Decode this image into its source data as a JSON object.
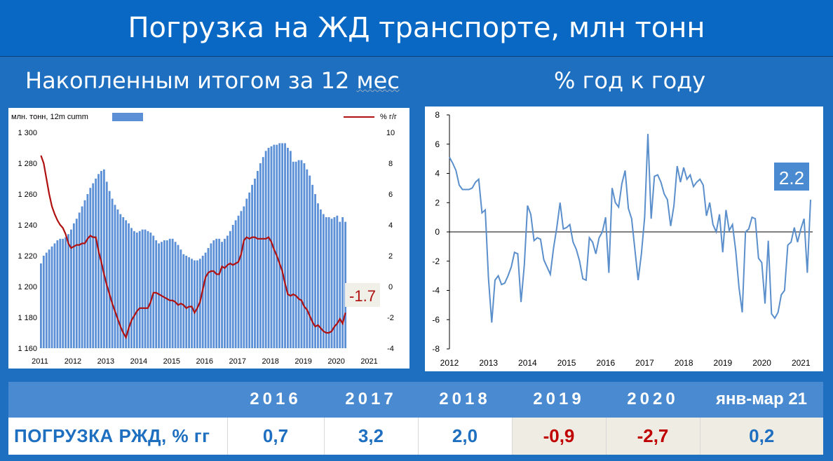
{
  "title": "Погрузка на ЖД транспорте, млн тонн",
  "subtitle_left_a": "Накопленным итогом за 12 ",
  "subtitle_left_b": "мес",
  "subtitle_right": "% год к году",
  "colors": {
    "bar": "#5b8fd6",
    "line_red": "#b01010",
    "line_blue": "#5b8fcc",
    "table_header": "#4a8ad0",
    "negative": "#c00000",
    "positive": "#1f6fc0"
  },
  "chart_data": [
    {
      "type": "bar",
      "legend_bar_label": "млн. тонн, 12m cumm",
      "legend_line_label": "% г/г",
      "x_ticks": [
        "2011",
        "2012",
        "2013",
        "2014",
        "2015",
        "2016",
        "2017",
        "2018",
        "2019",
        "2020",
        "2021"
      ],
      "y_left_ticks": [
        "1 160",
        "1 180",
        "1 200",
        "1 220",
        "1 240",
        "1 260",
        "1 280",
        "1 300"
      ],
      "y_right_ticks": [
        "-4",
        "-2",
        "0",
        "2",
        "4",
        "6",
        "8",
        "10"
      ],
      "ylim_left": [
        1160,
        1300
      ],
      "ylim_right": [
        -4,
        10
      ],
      "xlim": [
        2011.0,
        2021.35
      ],
      "annotation": "-1.7",
      "series": [
        {
          "kind": "bar",
          "axis": "left",
          "x_start": 2011.0,
          "step": 0.0833,
          "values": [
            1215,
            1220,
            1222,
            1224,
            1226,
            1228,
            1230,
            1231,
            1231,
            1232,
            1234,
            1237,
            1241,
            1244,
            1248,
            1252,
            1256,
            1260,
            1264,
            1267,
            1270,
            1273,
            1275,
            1276,
            1268,
            1262,
            1257,
            1253,
            1250,
            1247,
            1245,
            1243,
            1241,
            1238,
            1236,
            1235,
            1236,
            1237,
            1237,
            1236,
            1235,
            1233,
            1230,
            1228,
            1229,
            1230,
            1230,
            1231,
            1231,
            1229,
            1227,
            1224,
            1221,
            1220,
            1219,
            1218,
            1217,
            1217,
            1218,
            1220,
            1222,
            1225,
            1228,
            1230,
            1231,
            1231,
            1229,
            1231,
            1233,
            1236,
            1240,
            1243,
            1246,
            1249,
            1252,
            1257,
            1261,
            1266,
            1270,
            1275,
            1280,
            1284,
            1288,
            1290,
            1291,
            1292,
            1292,
            1293,
            1293,
            1293,
            1290,
            1288,
            1281,
            1281,
            1282,
            1282,
            1280,
            1276,
            1272,
            1266,
            1260,
            1254,
            1250,
            1247,
            1245,
            1245,
            1244,
            1245,
            1246,
            1242,
            1245,
            1242
          ]
        },
        {
          "kind": "line",
          "axis": "right",
          "x_start": 2011.0,
          "step": 0.0833,
          "values": [
            8.5,
            8.0,
            7.0,
            6.0,
            5.2,
            4.7,
            4.3,
            4.0,
            3.8,
            3.4,
            2.8,
            2.5,
            2.6,
            2.7,
            2.7,
            2.8,
            2.8,
            3.1,
            3.3,
            3.2,
            3.2,
            2.3,
            1.6,
            0.8,
            0.1,
            -0.5,
            -1.1,
            -1.6,
            -2.1,
            -2.6,
            -3.0,
            -3.3,
            -2.7,
            -2.2,
            -1.9,
            -1.6,
            -1.4,
            -1.4,
            -1.4,
            -1.4,
            -1.0,
            -0.4,
            -0.4,
            -0.5,
            -0.6,
            -0.7,
            -0.8,
            -0.9,
            -0.9,
            -1.0,
            -1.2,
            -1.1,
            -1.2,
            -1.4,
            -1.3,
            -1.3,
            -1.7,
            -1.4,
            -1.0,
            -0.2,
            0.6,
            0.9,
            1.0,
            1.0,
            0.8,
            0.8,
            1.3,
            1.2,
            1.4,
            1.5,
            1.4,
            1.5,
            1.6,
            2.1,
            3.0,
            3.2,
            3.1,
            3.2,
            3.2,
            3.1,
            3.1,
            3.1,
            3.1,
            3.2,
            2.9,
            2.4,
            2.0,
            1.5,
            1.0,
            0.2,
            -0.5,
            -0.6,
            -0.5,
            -0.6,
            -0.8,
            -0.9,
            -1.3,
            -1.5,
            -1.9,
            -2.3,
            -2.6,
            -2.5,
            -2.7,
            -2.9,
            -3.0,
            -3.0,
            -2.9,
            -2.6,
            -2.4,
            -2.1,
            -2.4,
            -1.7
          ]
        }
      ]
    },
    {
      "type": "line",
      "x_ticks": [
        "2012",
        "2013",
        "2014",
        "2015",
        "2016",
        "2017",
        "2018",
        "2019",
        "2020",
        "2021"
      ],
      "y_ticks": [
        "-8",
        "-6",
        "-4",
        "-2",
        "0",
        "2",
        "4",
        "6",
        "8"
      ],
      "ylim": [
        -8,
        8
      ],
      "xlim": [
        2012.0,
        2021.3
      ],
      "annotation": "2.2",
      "series": [
        {
          "x_start": 2012.0,
          "step": 0.0833,
          "values": [
            5.1,
            4.7,
            4.2,
            3.2,
            2.9,
            2.9,
            2.9,
            3.0,
            3.4,
            3.6,
            1.3,
            1.5,
            -3.2,
            -6.2,
            -3.3,
            -3.0,
            -3.6,
            -3.5,
            -3.0,
            -2.4,
            -1.4,
            -1.5,
            -4.8,
            -2.3,
            1.8,
            1.2,
            -0.6,
            -0.4,
            -0.5,
            -1.9,
            -2.4,
            -2.9,
            -1.1,
            0.3,
            2.0,
            0.2,
            0.3,
            0.5,
            -0.7,
            -1.2,
            -2.0,
            -3.2,
            -3.3,
            -0.4,
            -0.7,
            -1.5,
            -0.4,
            0.0,
            1.0,
            -2.8,
            3.0,
            2.0,
            1.7,
            3.3,
            4.2,
            1.6,
            0.9,
            -1.2,
            -3.3,
            -1.5,
            1.0,
            6.7,
            0.9,
            3.8,
            3.9,
            3.4,
            2.6,
            2.2,
            0.4,
            1.8,
            4.5,
            3.4,
            4.4,
            3.6,
            3.9,
            3.1,
            3.4,
            3.6,
            3.2,
            1.1,
            2.0,
            0.5,
            0.0,
            1.2,
            -1.4,
            1.5,
            0.1,
            0.5,
            -1.3,
            -3.8,
            -5.5,
            0.0,
            0.2,
            1.0,
            0.9,
            -1.8,
            -2.1,
            -4.9,
            -0.6,
            -5.6,
            -5.9,
            -5.5,
            -4.3,
            -4.0,
            -0.9,
            -0.7,
            0.3,
            -0.7,
            0.2,
            0.9,
            -2.8,
            2.2
          ]
        }
      ]
    }
  ],
  "table": {
    "headers": [
      "",
      "2016",
      "2017",
      "2018",
      "2019",
      "2020",
      "янв-мар 21"
    ],
    "row_label": "ПОГРУЗКА РЖД, % гг",
    "values": [
      "0,7",
      "3,2",
      "2,0",
      "-0,9",
      "-2,7",
      "0,2"
    ]
  }
}
